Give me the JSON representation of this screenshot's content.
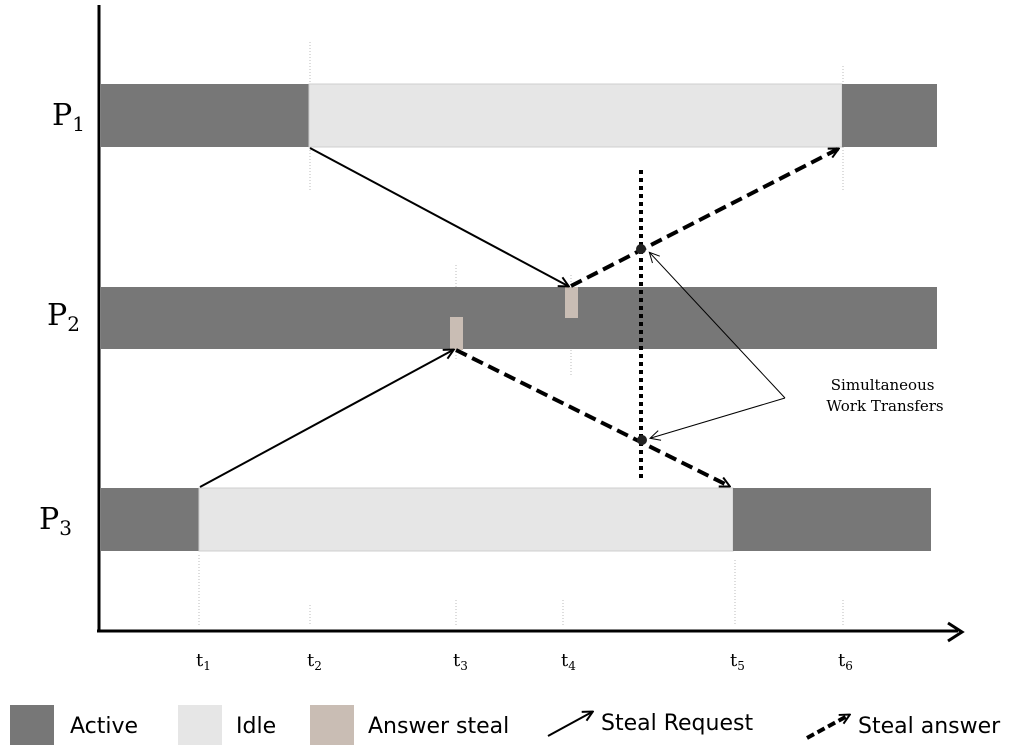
{
  "processors": [
    {
      "base": "P",
      "sub": "1"
    },
    {
      "base": "P",
      "sub": "2"
    },
    {
      "base": "P",
      "sub": "3"
    }
  ],
  "times": [
    {
      "base": "t",
      "sub": "1"
    },
    {
      "base": "t",
      "sub": "2"
    },
    {
      "base": "t",
      "sub": "3"
    },
    {
      "base": "t",
      "sub": "4"
    },
    {
      "base": "t",
      "sub": "5"
    },
    {
      "base": "t",
      "sub": "6"
    }
  ],
  "annotation": {
    "line1": "Simultaneous",
    "line2": "Work Transfers"
  },
  "legend": {
    "active": "Active",
    "idle": "Idle",
    "answer_steal": "Answer steal",
    "steal_request": "Steal Request",
    "steal_answer": "Steal answer"
  },
  "colors": {
    "active": "#777777",
    "idle": "#e6e6e6",
    "answer_steal": "#c9bdb4",
    "line": "#000000"
  }
}
